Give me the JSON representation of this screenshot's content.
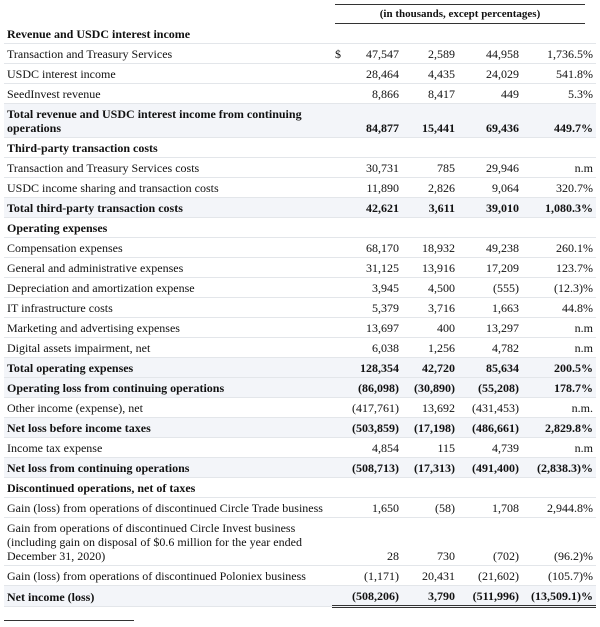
{
  "header": {
    "subtitle": "(in thousands, except percentages)"
  },
  "table": {
    "rows": [
      {
        "label": "Revenue and USDC interest income"
      },
      {
        "label": "Transaction and Treasury Services",
        "currency": "$",
        "cells": [
          "47,547",
          "2,589",
          "44,958",
          "1,736.5%"
        ]
      },
      {
        "label": "USDC interest income",
        "cells": [
          "28,464",
          "4,435",
          "24,029",
          "541.8%"
        ]
      },
      {
        "label": "SeedInvest revenue",
        "cells": [
          "8,866",
          "8,417",
          "449",
          "5.3%"
        ]
      },
      {
        "label": "Total revenue and USDC interest income from continuing operations",
        "cells": [
          "84,877",
          "15,441",
          "69,436",
          "449.7%"
        ]
      },
      {
        "label": "Third-party transaction costs"
      },
      {
        "label": "Transaction and Treasury Services costs",
        "cells": [
          "30,731",
          "785",
          "29,946",
          "n.m"
        ]
      },
      {
        "label": "USDC income sharing and transaction costs",
        "cells": [
          "11,890",
          "2,826",
          "9,064",
          "320.7%"
        ]
      },
      {
        "label": "Total third-party transaction costs",
        "cells": [
          "42,621",
          "3,611",
          "39,010",
          "1,080.3%"
        ]
      },
      {
        "label": "Operating expenses"
      },
      {
        "label": "Compensation expenses",
        "cells": [
          "68,170",
          "18,932",
          "49,238",
          "260.1%"
        ]
      },
      {
        "label": "General and administrative expenses",
        "cells": [
          "31,125",
          "13,916",
          "17,209",
          "123.7%"
        ]
      },
      {
        "label": "Depreciation and amortization expense",
        "cells": [
          "3,945",
          "4,500",
          "(555)",
          "(12.3)%"
        ]
      },
      {
        "label": "IT infrastructure costs",
        "cells": [
          "5,379",
          "3,716",
          "1,663",
          "44.8%"
        ]
      },
      {
        "label": "Marketing and advertising expenses",
        "cells": [
          "13,697",
          "400",
          "13,297",
          "n.m"
        ]
      },
      {
        "label": "Digital assets impairment, net",
        "cells": [
          "6,038",
          "1,256",
          "4,782",
          "n.m"
        ]
      },
      {
        "label": "Total operating expenses",
        "cells": [
          "128,354",
          "42,720",
          "85,634",
          "200.5%"
        ]
      },
      {
        "label": "Operating loss from continuing operations",
        "cells": [
          "(86,098)",
          "(30,890)",
          "(55,208)",
          "178.7%"
        ]
      },
      {
        "label": "Other income (expense), net",
        "cells": [
          "(417,761)",
          "13,692",
          "(431,453)",
          "n.m."
        ]
      },
      {
        "label": "Net loss before income taxes",
        "cells": [
          "(503,859)",
          "(17,198)",
          "(486,661)",
          "2,829.8%"
        ]
      },
      {
        "label": "Income tax expense",
        "cells": [
          "4,854",
          "115",
          "4,739",
          "n.m"
        ]
      },
      {
        "label": "Net loss from continuing operations",
        "cells": [
          "(508,713)",
          "(17,313)",
          "(491,400)",
          "(2,838.3)%"
        ]
      },
      {
        "label": "Discontinued operations, net of taxes"
      },
      {
        "label": "Gain (loss) from operations of discontinued Circle Trade business",
        "cells": [
          "1,650",
          "(58)",
          "1,708",
          "2,944.8%"
        ]
      },
      {
        "label": "Gain from operations of discontinued Circle Invest business (including gain on disposal of $0.6 million for the year ended December 31, 2020)",
        "cells": [
          "28",
          "730",
          "(702)",
          "(96.2)%"
        ]
      },
      {
        "label": "Gain (loss) from operations of discontinued Poloniex business",
        "cells": [
          "(1,171)",
          "20,431",
          "(21,602)",
          "(105.7)%"
        ]
      },
      {
        "label": "Net income (loss)",
        "cells": [
          "(508,206)",
          "3,790",
          "(511,996)",
          "(13,509.1)%"
        ]
      }
    ]
  }
}
